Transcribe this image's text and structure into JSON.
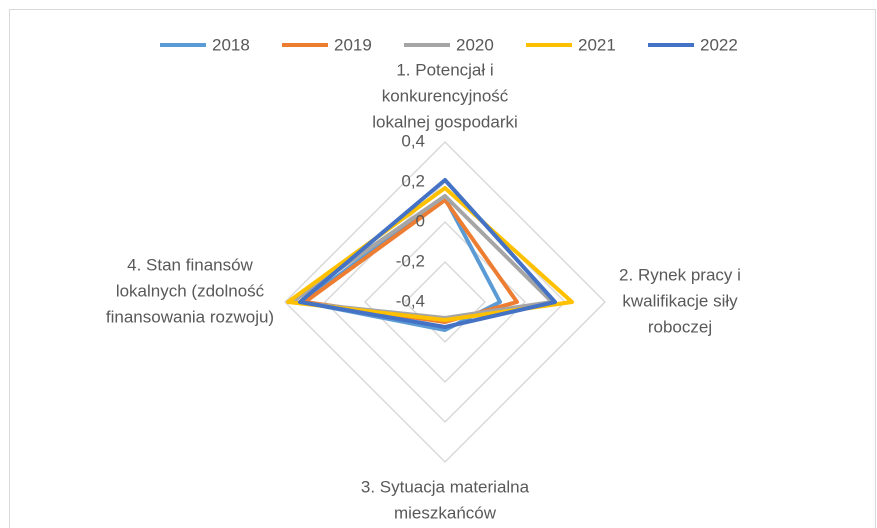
{
  "chart_data": {
    "type": "radar",
    "categories": [
      [
        "1. Potencjał i",
        "konkurencyjność",
        "lokalnej gospodarki"
      ],
      [
        "2. Rynek pracy i",
        "kwalifikacje siły",
        "roboczej"
      ],
      [
        "3. Sytuacja materialna",
        "mieszkańców"
      ],
      [
        "4. Stan finansów",
        "lokalnych (zdolność",
        "finansowania rozwoju)"
      ]
    ],
    "series": [
      {
        "name": "2018",
        "color": "#5b9bd5",
        "values": [
          0.12,
          -0.125,
          -0.26,
          0.315
        ]
      },
      {
        "name": "2019",
        "color": "#ed7d31",
        "values": [
          0.11,
          -0.04,
          -0.3,
          0.3
        ]
      },
      {
        "name": "2020",
        "color": "#a5a5a5",
        "values": [
          0.13,
          0.135,
          -0.32,
          0.365
        ]
      },
      {
        "name": "2021",
        "color": "#ffc000",
        "values": [
          0.17,
          0.235,
          -0.31,
          0.385
        ]
      },
      {
        "name": "2022",
        "color": "#4472c4",
        "values": [
          0.21,
          0.15,
          -0.275,
          0.325
        ]
      }
    ],
    "ylim": [
      -0.4,
      0.4
    ],
    "yticks": [
      {
        "value": -0.4,
        "label": "-0,4"
      },
      {
        "value": -0.2,
        "label": "-0,2"
      },
      0,
      {
        "value": 0.2,
        "label": "0,2"
      },
      {
        "value": 0.4,
        "label": "0,4"
      }
    ],
    "grid": true,
    "legend": "top"
  }
}
